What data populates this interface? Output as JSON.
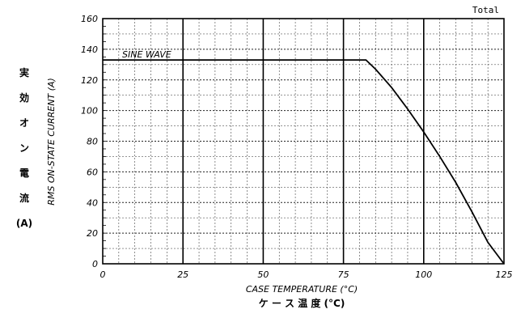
{
  "chart_data": {
    "type": "line",
    "title": "Total",
    "xlabel": "CASE TEMPERATURE (°C)",
    "xlabel_jp": "ケ ー ス 温 度 (°C)",
    "ylabel": "RMS ON-STATE CURRENT (A)",
    "ylabel_jp": [
      "実",
      "効",
      "オ",
      "ン",
      "電",
      "流",
      "(A)"
    ],
    "xlim": [
      0,
      125
    ],
    "ylim": [
      0,
      160
    ],
    "x_ticks": [
      0,
      25,
      50,
      75,
      100,
      125
    ],
    "y_ticks": [
      0,
      20,
      40,
      60,
      80,
      100,
      120,
      140,
      160
    ],
    "grid": true,
    "annotations": [
      {
        "text": "SINE WAVE"
      }
    ],
    "series": [
      {
        "x": [
          0,
          82,
          85,
          90,
          95,
          100,
          105,
          110,
          115,
          120,
          125
        ],
        "y": [
          133,
          133,
          127,
          115,
          101,
          86,
          70,
          53,
          34,
          14,
          0
        ]
      }
    ]
  }
}
